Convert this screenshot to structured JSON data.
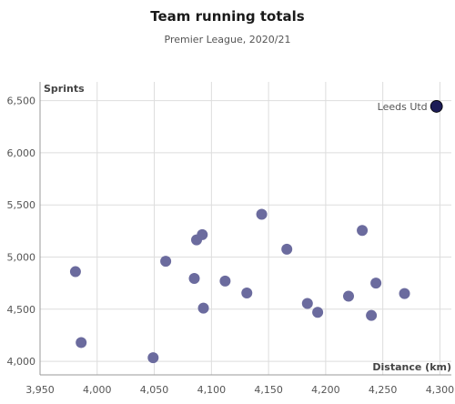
{
  "header": {
    "title": "Team running totals",
    "subtitle": "Premier League, 2020/21"
  },
  "chart_data": {
    "type": "scatter",
    "title": "Team running totals",
    "subtitle": "Premier League, 2020/21",
    "xlabel": "Distance (km)",
    "ylabel": "Sprints",
    "xlim": [
      3950,
      4310
    ],
    "ylim": [
      3870,
      6680
    ],
    "xticks": [
      3950,
      4000,
      4050,
      4100,
      4150,
      4200,
      4250,
      4300
    ],
    "xtick_labels": [
      "3,950",
      "4,000",
      "4,050",
      "4,100",
      "4,150",
      "4,200",
      "4,250",
      "4,300"
    ],
    "yticks": [
      4000,
      4500,
      5000,
      5500,
      6000,
      6500
    ],
    "ytick_labels": [
      "4,000",
      "4,500",
      "5,000",
      "5,500",
      "6,000",
      "6,500"
    ],
    "grid": true,
    "colors": {
      "points": "#6b6b9e",
      "highlight": "#1c1c55",
      "grid": "#dddddd",
      "axis": "#999999"
    },
    "series": [
      {
        "points": [
          {
            "x": 3981,
            "y": 4860
          },
          {
            "x": 3986,
            "y": 4180
          },
          {
            "x": 4049,
            "y": 4035
          },
          {
            "x": 4060,
            "y": 4960
          },
          {
            "x": 4085,
            "y": 4795
          },
          {
            "x": 4087,
            "y": 5165
          },
          {
            "x": 4092,
            "y": 5215
          },
          {
            "x": 4093,
            "y": 4510
          },
          {
            "x": 4112,
            "y": 4770
          },
          {
            "x": 4131,
            "y": 4655
          },
          {
            "x": 4144,
            "y": 5410
          },
          {
            "x": 4166,
            "y": 5075
          },
          {
            "x": 4184,
            "y": 4555
          },
          {
            "x": 4193,
            "y": 4470
          },
          {
            "x": 4220,
            "y": 4625
          },
          {
            "x": 4232,
            "y": 5255
          },
          {
            "x": 4240,
            "y": 4440
          },
          {
            "x": 4244,
            "y": 4750
          },
          {
            "x": 4269,
            "y": 4650
          }
        ]
      },
      {
        "highlight": true,
        "points": [
          {
            "x": 4297,
            "y": 6445,
            "label": "Leeds Utd"
          }
        ]
      }
    ]
  }
}
